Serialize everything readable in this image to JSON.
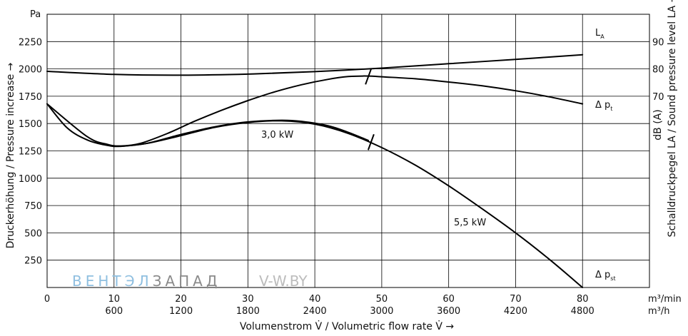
{
  "chart_data": {
    "type": "line",
    "x_unit": "m³/min",
    "x_unit2": "m³/h",
    "x_ticks": [
      0,
      10,
      20,
      30,
      40,
      50,
      60,
      70,
      80
    ],
    "x_ticks2": [
      "600",
      "1200",
      "1800",
      "2400",
      "3000",
      "3600",
      "4200",
      "4800"
    ],
    "x_unit_labels": [
      "m3/min",
      "m3/h"
    ],
    "xlabel": "Volumenstrom V̇ / Volumetric flow rate V̇ →",
    "xlim": [
      0,
      90
    ],
    "y_unit": "Pa",
    "ylabel": "Druckerhöhung / Pressure increase →",
    "ylim": [
      0,
      2500
    ],
    "y_ticks": [
      250,
      500,
      750,
      1000,
      1250,
      1500,
      1750,
      2000,
      2250
    ],
    "y2_unit": "dB (A)",
    "y2label": "Schalldruckpegel LA / Sound pressure level LA →",
    "y2_ticks": [
      70,
      80,
      90
    ],
    "y2_min_at_y": 1750,
    "grid": true,
    "series": [
      {
        "name": "LA",
        "axis": "y2",
        "x": [
          0,
          10,
          20,
          30,
          40,
          50,
          60,
          70,
          80
        ],
        "values": [
          79.1,
          78.0,
          77.7,
          78.1,
          79.0,
          80.3,
          81.9,
          83.5,
          85.2
        ]
      },
      {
        "name": "Δ pt",
        "axis": "y",
        "x": [
          0,
          6,
          9,
          11,
          14,
          18,
          22,
          26,
          30,
          34,
          38,
          42,
          45,
          48,
          50,
          55,
          60,
          65,
          70,
          75,
          80
        ],
        "values": [
          1680,
          1380,
          1310,
          1295,
          1320,
          1410,
          1520,
          1620,
          1710,
          1790,
          1855,
          1905,
          1930,
          1935,
          1928,
          1910,
          1880,
          1845,
          1800,
          1745,
          1680
        ]
      },
      {
        "name": "3,0 kW",
        "axis": "y",
        "x": [
          11,
          15,
          20,
          25,
          30,
          35,
          38,
          42,
          45,
          48
        ],
        "values": [
          1292,
          1320,
          1400,
          1470,
          1515,
          1530,
          1520,
          1480,
          1420,
          1345
        ]
      },
      {
        "name": "Δ pst",
        "axis": "y",
        "x": [
          0,
          3,
          6,
          9,
          11,
          15,
          20,
          25,
          30,
          35,
          40,
          45,
          50,
          55,
          60,
          65,
          70,
          75,
          80
        ],
        "values": [
          1680,
          1460,
          1350,
          1300,
          1292,
          1320,
          1390,
          1465,
          1510,
          1525,
          1495,
          1410,
          1280,
          1120,
          930,
          720,
          500,
          260,
          0
        ]
      }
    ],
    "annotations": [
      {
        "text": "3,0 kW",
        "x": 34,
        "y": 1390
      },
      {
        "text": "5,5 kW",
        "x": 63,
        "y": 590
      }
    ],
    "curve_labels": {
      "la": {
        "main": "L",
        "sub": "A"
      },
      "dpt": {
        "main": "Δ p",
        "sub": "t"
      },
      "dpst": {
        "main": "Δ p",
        "sub": "st"
      }
    },
    "markers": [
      {
        "x": 48,
        "y": 1930
      },
      {
        "x": 48.4,
        "y": 1330
      }
    ],
    "watermark": {
      "part1": "ВЕНТЭЛ",
      "part2": "ЗАПАД",
      "part3": "V-W.BY"
    },
    "colors": {
      "line": "#000000",
      "grid": "#000000",
      "wm1": "#8fbfe0",
      "wm2": "#8a8a8a",
      "wm3": "#bcbcbc"
    }
  }
}
